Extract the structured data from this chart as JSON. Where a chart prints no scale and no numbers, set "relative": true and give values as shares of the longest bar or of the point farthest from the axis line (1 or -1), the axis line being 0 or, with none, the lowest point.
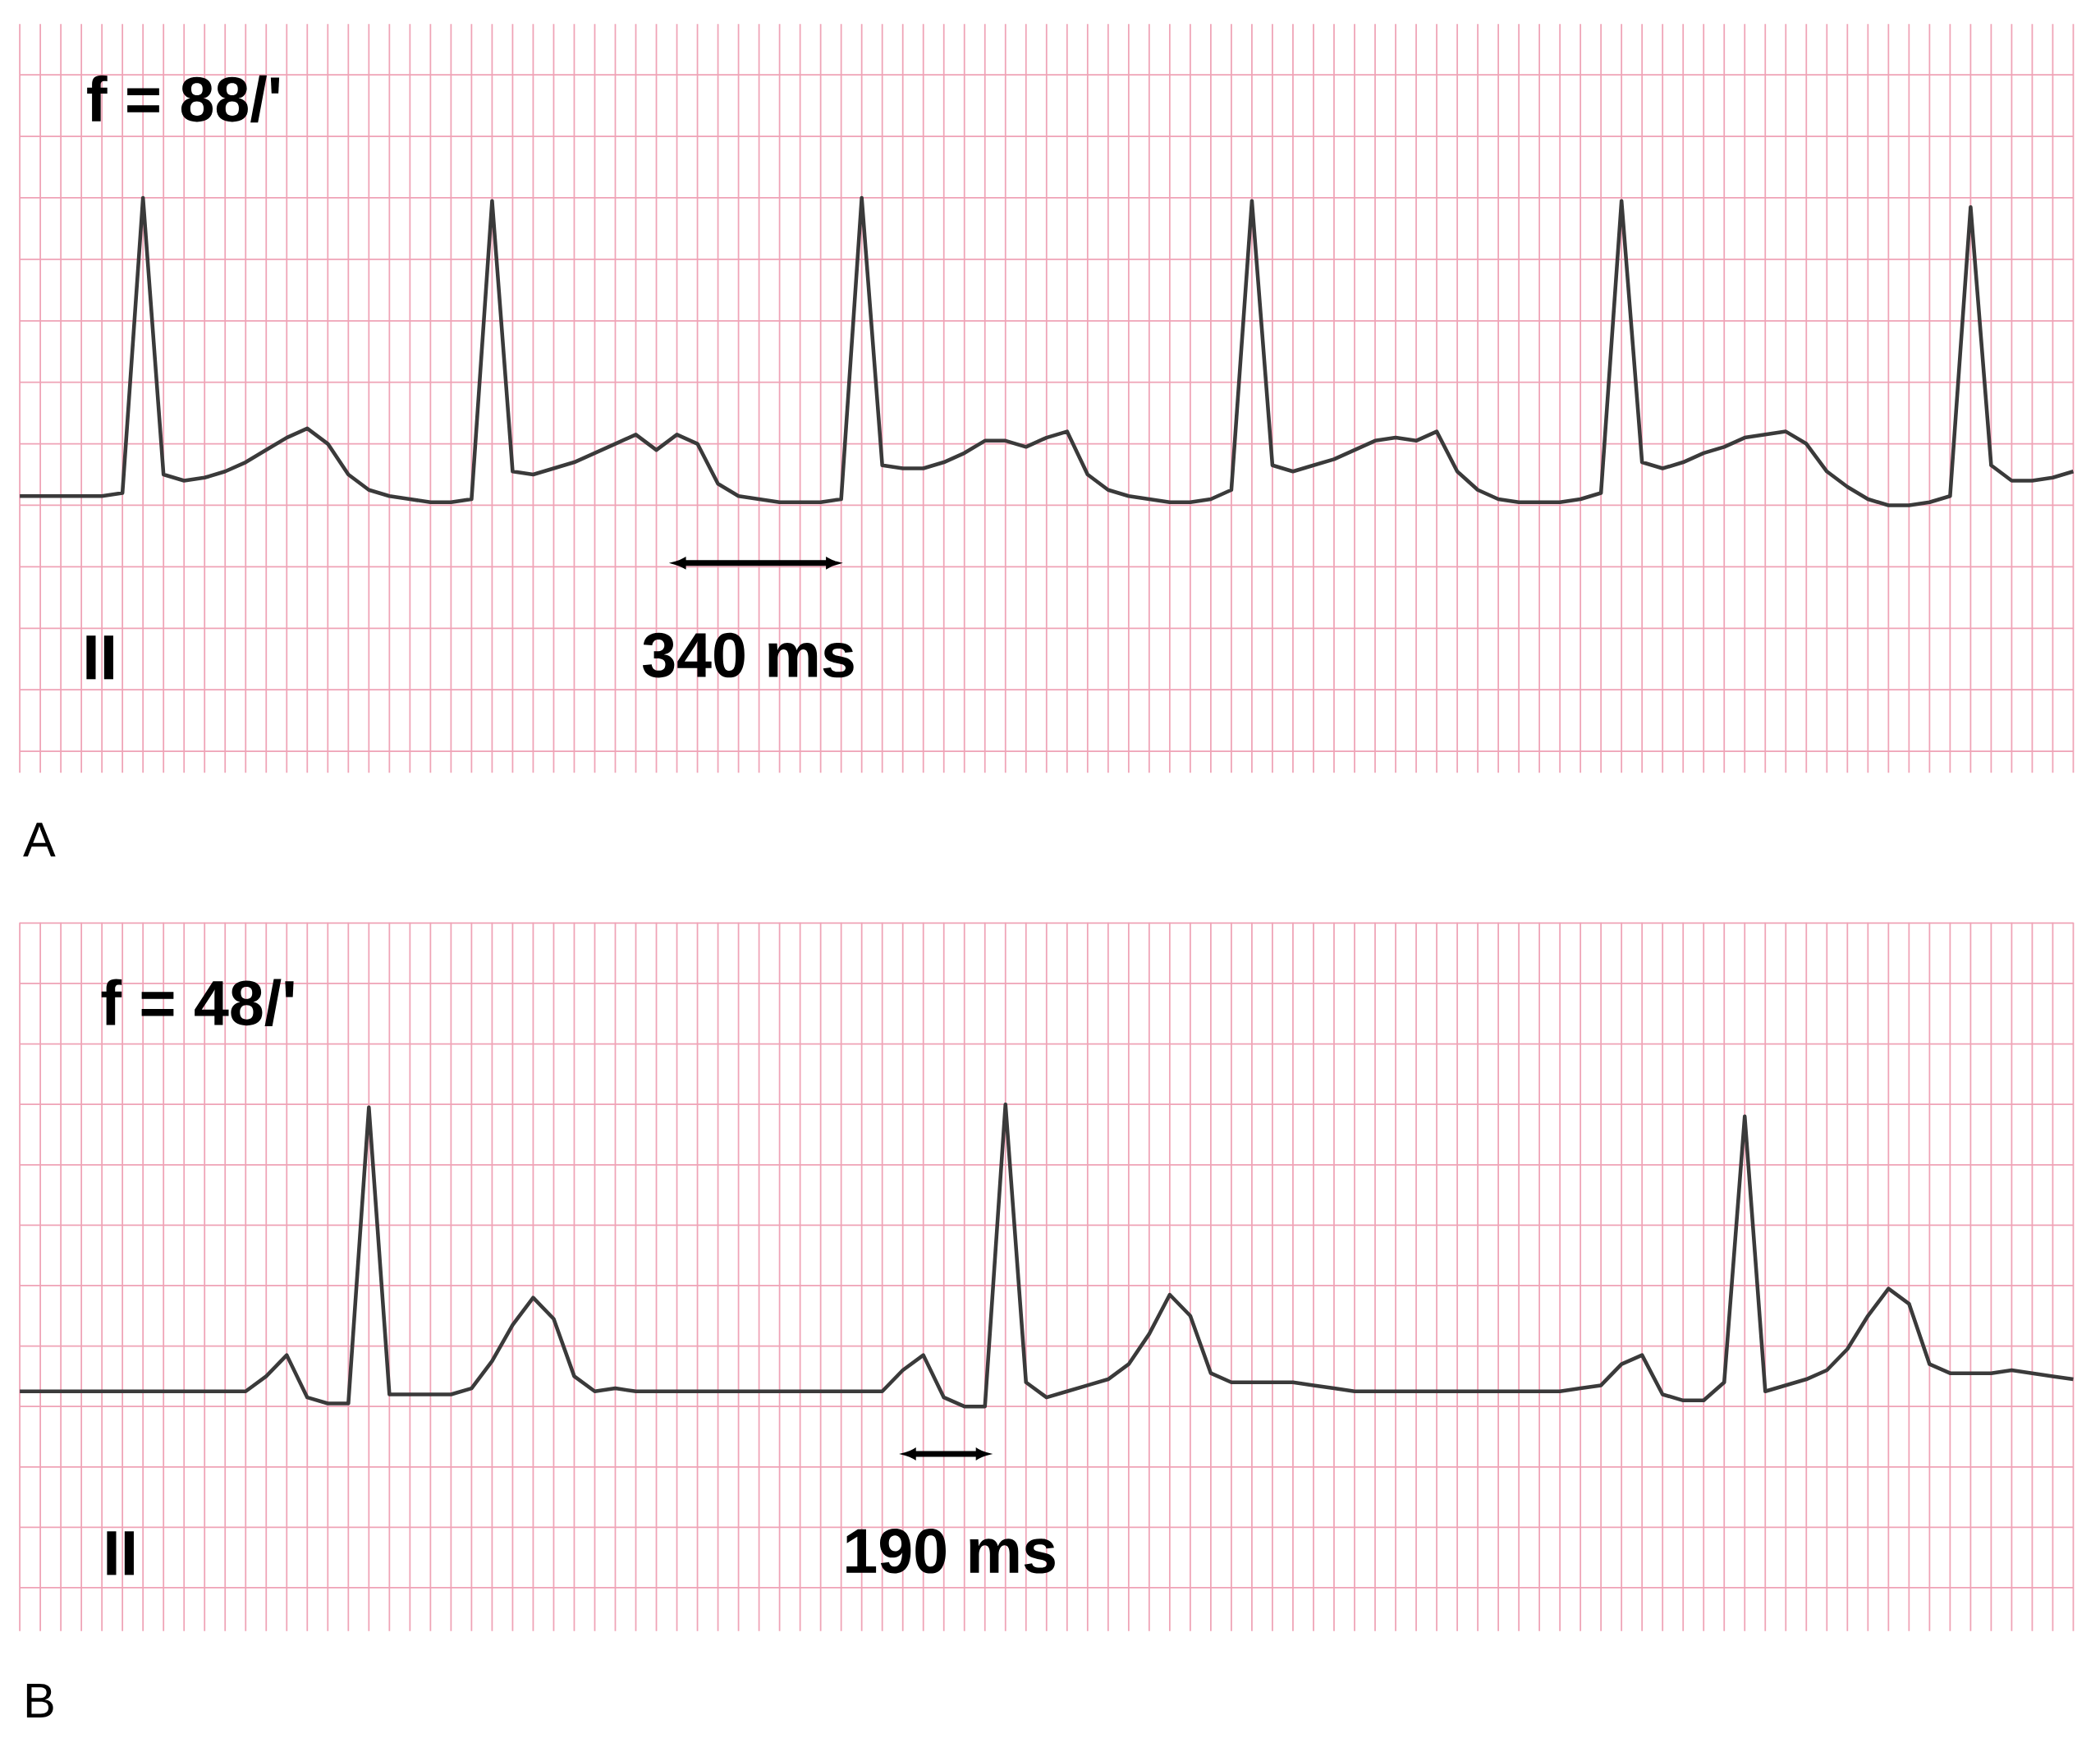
{
  "chart_data": [
    {
      "type": "line",
      "title": "A",
      "relative": true,
      "grid": true,
      "categories": [
        null,
        null,
        null,
        null,
        null,
        null,
        null,
        null,
        null,
        null,
        null,
        null,
        null,
        null,
        null,
        null,
        null,
        null,
        null,
        null,
        null,
        null,
        null,
        null,
        null,
        null,
        null,
        null,
        null,
        null,
        null,
        null,
        null,
        null,
        null,
        null,
        null,
        null,
        null,
        null,
        null,
        null,
        null,
        null,
        null,
        null,
        null,
        null,
        null,
        null,
        null,
        null,
        null,
        null,
        null,
        null,
        null,
        null,
        null,
        null,
        null,
        null,
        null,
        null,
        null,
        null,
        null,
        null,
        null,
        null,
        null,
        null,
        null,
        null,
        null,
        null,
        null,
        null,
        null,
        null,
        null,
        null,
        null,
        null,
        null,
        null,
        null,
        null,
        null,
        null,
        null,
        null,
        null,
        null,
        null,
        null,
        null,
        null,
        null,
        null,
        null
      ],
      "series": [
        {
          "color": "#3a3a3a",
          "values": [
            0.03,
            0.03,
            0.03,
            0.03,
            0.03,
            0.04,
            1,
            0.1,
            0.08,
            0.09,
            0.11,
            0.14,
            0.18,
            0.22,
            0.25,
            0.2,
            0.1,
            0.05,
            0.03,
            0.02,
            0.01,
            0.01,
            0.02,
            0.99,
            0.11,
            0.1,
            0.12,
            0.14,
            0.17,
            0.2,
            0.23,
            0.18,
            0.23,
            0.2,
            0.07,
            0.03,
            0.02,
            0.01,
            0.01,
            0.01,
            0.02,
            1,
            0.13,
            0.12,
            0.12,
            0.14,
            0.17,
            0.21,
            0.21,
            0.19,
            0.22,
            0.24,
            0.1,
            0.05,
            0.03,
            0.02,
            0.01,
            0.01,
            0.02,
            0.05,
            0.99,
            0.13,
            0.11,
            0.13,
            0.15,
            0.18,
            0.21,
            0.22,
            0.21,
            0.24,
            0.11,
            0.05,
            0.02,
            0.01,
            0.01,
            0.01,
            0.02,
            0.04,
            0.99,
            0.14,
            0.12,
            0.14,
            0.17,
            0.19,
            0.22,
            0.23,
            0.24,
            0.2,
            0.11,
            0.06,
            0.02,
            0,
            0,
            0.01,
            0.03,
            0.97,
            0.13,
            0.08,
            0.08,
            0.09,
            0.11
          ]
        }
      ],
      "annotations": [
        "f = 88/'",
        "II",
        "340 ms"
      ]
    },
    {
      "type": "line",
      "title": "B",
      "relative": true,
      "grid": true,
      "categories": [
        null,
        null,
        null,
        null,
        null,
        null,
        null,
        null,
        null,
        null,
        null,
        null,
        null,
        null,
        null,
        null,
        null,
        null,
        null,
        null,
        null,
        null,
        null,
        null,
        null,
        null,
        null,
        null,
        null,
        null,
        null,
        null,
        null,
        null,
        null,
        null,
        null,
        null,
        null,
        null,
        null,
        null,
        null,
        null,
        null,
        null,
        null,
        null,
        null,
        null,
        null,
        null,
        null,
        null,
        null,
        null,
        null,
        null,
        null,
        null,
        null,
        null,
        null,
        null,
        null,
        null,
        null,
        null,
        null,
        null,
        null,
        null,
        null,
        null,
        null,
        null,
        null,
        null,
        null,
        null,
        null,
        null,
        null,
        null,
        null,
        null,
        null,
        null,
        null,
        null,
        null,
        null,
        null,
        null,
        null,
        null,
        null,
        null,
        null,
        null,
        null
      ],
      "series": [
        {
          "color": "#3a3a3a",
          "values": [
            0.05,
            0.05,
            0.05,
            0.05,
            0.05,
            0.05,
            0.05,
            0.05,
            0.05,
            0.05,
            0.05,
            0.05,
            0.1,
            0.17,
            0.03,
            0.01,
            0.01,
            0.99,
            0.04,
            0.04,
            0.04,
            0.04,
            0.06,
            0.15,
            0.27,
            0.36,
            0.29,
            0.1,
            0.05,
            0.06,
            0.05,
            0.05,
            0.05,
            0.05,
            0.05,
            0.05,
            0.05,
            0.05,
            0.05,
            0.05,
            0.05,
            0.05,
            0.05,
            0.12,
            0.17,
            0.03,
            0,
            0,
            1,
            0.08,
            0.03,
            0.05,
            0.07,
            0.09,
            0.14,
            0.24,
            0.37,
            0.3,
            0.11,
            0.08,
            0.08,
            0.08,
            0.08,
            0.07,
            0.06,
            0.05,
            0.05,
            0.05,
            0.05,
            0.05,
            0.05,
            0.05,
            0.05,
            0.05,
            0.05,
            0.05,
            0.06,
            0.07,
            0.14,
            0.17,
            0.04,
            0.02,
            0.02,
            0.08,
            0.96,
            0.05,
            0.07,
            0.09,
            0.12,
            0.19,
            0.3,
            0.39,
            0.34,
            0.14,
            0.11,
            0.11,
            0.11,
            0.12,
            0.11,
            0.1,
            0.09
          ]
        }
      ],
      "annotations": [
        "f = 48/'",
        "II",
        "190 ms"
      ]
    }
  ]
}
